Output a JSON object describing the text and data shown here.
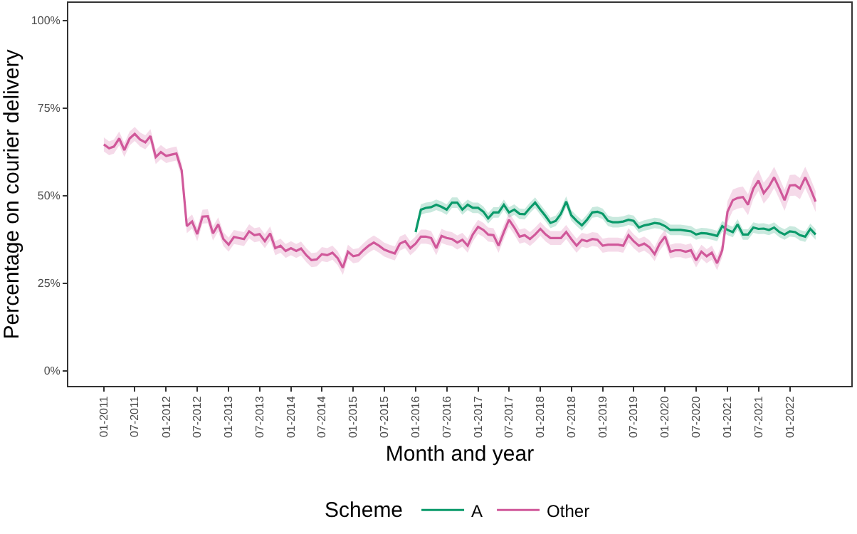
{
  "chart_data": {
    "type": "line",
    "xlabel": "Month and year",
    "ylabel": "Percentage on courier delivery",
    "legend_title": "Scheme",
    "legend": "bottom",
    "grid": false,
    "marker": "none",
    "line_style": "solid",
    "xlim": [
      "2010-06-07",
      "2022-12-27"
    ],
    "xticks": [
      {
        "value": "2011-01",
        "label": "01-2011"
      },
      {
        "value": "2011-07",
        "label": "07-2011"
      },
      {
        "value": "2012-01",
        "label": "01-2012"
      },
      {
        "value": "2012-07",
        "label": "07-2012"
      },
      {
        "value": "2013-01",
        "label": "01-2013"
      },
      {
        "value": "2013-07",
        "label": "07-2013"
      },
      {
        "value": "2014-01",
        "label": "01-2014"
      },
      {
        "value": "2014-07",
        "label": "07-2014"
      },
      {
        "value": "2015-01",
        "label": "01-2015"
      },
      {
        "value": "2015-07",
        "label": "07-2015"
      },
      {
        "value": "2016-01",
        "label": "01-2016"
      },
      {
        "value": "2016-07",
        "label": "07-2016"
      },
      {
        "value": "2017-01",
        "label": "01-2017"
      },
      {
        "value": "2017-07",
        "label": "07-2017"
      },
      {
        "value": "2018-01",
        "label": "01-2018"
      },
      {
        "value": "2018-07",
        "label": "07-2018"
      },
      {
        "value": "2019-01",
        "label": "01-2019"
      },
      {
        "value": "2019-07",
        "label": "07-2019"
      },
      {
        "value": "2020-01",
        "label": "01-2020"
      },
      {
        "value": "2020-07",
        "label": "07-2020"
      },
      {
        "value": "2021-01",
        "label": "01-2021"
      },
      {
        "value": "2021-07",
        "label": "07-2021"
      },
      {
        "value": "2022-01",
        "label": "01-2022"
      }
    ],
    "ylim": [
      -4.3,
      105
    ],
    "yticks": [
      {
        "value": 0,
        "label": "0%"
      },
      {
        "value": 25,
        "label": "25%"
      },
      {
        "value": 50,
        "label": "50%"
      },
      {
        "value": 75,
        "label": "75%"
      },
      {
        "value": 100,
        "label": "100%"
      }
    ],
    "series": [
      {
        "name": "A",
        "color": "#0a9a6a",
        "x": [
          "2016-01",
          "2016-02",
          "2016-03",
          "2016-04",
          "2016-05",
          "2016-06",
          "2016-07",
          "2016-08",
          "2016-09",
          "2016-10",
          "2016-11",
          "2016-12",
          "2017-01",
          "2017-02",
          "2017-03",
          "2017-04",
          "2017-05",
          "2017-06",
          "2017-07",
          "2017-08",
          "2017-09",
          "2017-10",
          "2017-11",
          "2017-12",
          "2018-01",
          "2018-02",
          "2018-03",
          "2018-04",
          "2018-05",
          "2018-06",
          "2018-07",
          "2018-08",
          "2018-09",
          "2018-10",
          "2018-11",
          "2018-12",
          "2019-01",
          "2019-02",
          "2019-03",
          "2019-04",
          "2019-05",
          "2019-06",
          "2019-07",
          "2019-08",
          "2019-09",
          "2019-10",
          "2019-11",
          "2019-12",
          "2020-01",
          "2020-02",
          "2020-03",
          "2020-04",
          "2020-05",
          "2020-06",
          "2020-07",
          "2020-08",
          "2020-09",
          "2020-10",
          "2020-11",
          "2020-12",
          "2021-01",
          "2021-02",
          "2021-03",
          "2021-04",
          "2021-05",
          "2021-06",
          "2021-07",
          "2021-08",
          "2021-09",
          "2021-10",
          "2021-11",
          "2021-12",
          "2022-01",
          "2022-02",
          "2022-03",
          "2022-04",
          "2022-05",
          "2022-06"
        ],
        "values": [
          39.6,
          46,
          46.5,
          46.7,
          47.4,
          46.8,
          46,
          48,
          48,
          46,
          47.4,
          46.5,
          46.5,
          45.4,
          43.5,
          45.2,
          45.2,
          47.4,
          45.2,
          46,
          44.8,
          44.7,
          46.5,
          48,
          46,
          44.1,
          42.2,
          42.8,
          44.8,
          48.3,
          44.4,
          42.8,
          41.5,
          43.1,
          45.2,
          45.4,
          44.8,
          42.8,
          42.4,
          42.4,
          42.6,
          43.1,
          42.8,
          40.9,
          41.5,
          41.8,
          42.2,
          42,
          41.3,
          40.2,
          40.2,
          40.2,
          40,
          39.8,
          38.9,
          39.3,
          39.2,
          38.9,
          38.5,
          41.3,
          40.2,
          39.6,
          41.8,
          38.9,
          38.9,
          40.9,
          40.5,
          40.6,
          40.2,
          40.9,
          39.6,
          38.9,
          39.8,
          39.6,
          38.7,
          38.3,
          40.5,
          38.9
        ],
        "lower": [
          38.1,
          44.5,
          45,
          45.2,
          45.9,
          45.3,
          44.5,
          46.5,
          46.5,
          44.5,
          45.9,
          45,
          45,
          43.9,
          42,
          43.7,
          43.7,
          45.9,
          43.7,
          44.5,
          43.3,
          43.2,
          45,
          46.5,
          44.5,
          42.6,
          40.7,
          41.3,
          43.3,
          46.8,
          42.9,
          41.3,
          40,
          41.6,
          43.7,
          43.9,
          43.3,
          41.3,
          40.9,
          40.9,
          41.1,
          41.6,
          41.3,
          39.4,
          40,
          40.3,
          40.7,
          40.5,
          39.8,
          38.7,
          38.7,
          38.7,
          38.5,
          38.3,
          37.4,
          37.8,
          37.7,
          37.4,
          37,
          39.8,
          38.7,
          38.1,
          40.3,
          37.4,
          37.4,
          39.4,
          39,
          39.1,
          38.7,
          39.4,
          38.1,
          37.4,
          38.3,
          38.1,
          37.2,
          36.8,
          39,
          37.4
        ],
        "upper": [
          41.1,
          47.5,
          48,
          48.2,
          48.9,
          48.3,
          47.5,
          49.5,
          49.5,
          47.5,
          48.9,
          48,
          48,
          46.9,
          45,
          46.7,
          46.7,
          48.9,
          46.7,
          47.5,
          46.3,
          46.2,
          48,
          49.5,
          47.5,
          45.6,
          43.7,
          44.3,
          46.3,
          49.8,
          45.9,
          44.3,
          43,
          44.6,
          46.7,
          46.9,
          46.3,
          44.3,
          43.9,
          43.9,
          44.1,
          44.6,
          44.3,
          42.4,
          43,
          43.3,
          43.7,
          43.5,
          42.8,
          41.7,
          41.7,
          41.7,
          41.5,
          41.3,
          40.4,
          40.8,
          40.7,
          40.4,
          40,
          42.8,
          41.7,
          41.1,
          43.3,
          40.4,
          40.4,
          42.4,
          42,
          42.1,
          41.7,
          42.4,
          41.1,
          40.4,
          41.3,
          41.1,
          40.2,
          39.8,
          42,
          40.4
        ]
      },
      {
        "name": "Other",
        "color": "#d0589a",
        "x": [
          "2011-01",
          "2011-02",
          "2011-03",
          "2011-04",
          "2011-05",
          "2011-06",
          "2011-07",
          "2011-08",
          "2011-09",
          "2011-10",
          "2011-11",
          "2011-12",
          "2012-01",
          "2012-02",
          "2012-03",
          "2012-04",
          "2012-05",
          "2012-06",
          "2012-07",
          "2012-08",
          "2012-09",
          "2012-10",
          "2012-11",
          "2012-12",
          "2013-01",
          "2013-02",
          "2013-03",
          "2013-04",
          "2013-05",
          "2013-06",
          "2013-07",
          "2013-08",
          "2013-09",
          "2013-10",
          "2013-11",
          "2013-12",
          "2014-01",
          "2014-02",
          "2014-03",
          "2014-04",
          "2014-05",
          "2014-06",
          "2014-07",
          "2014-08",
          "2014-09",
          "2014-10",
          "2014-11",
          "2014-12",
          "2015-01",
          "2015-02",
          "2015-03",
          "2015-04",
          "2015-05",
          "2015-06",
          "2015-07",
          "2015-08",
          "2015-09",
          "2015-10",
          "2015-11",
          "2015-12",
          "2016-01",
          "2016-02",
          "2016-03",
          "2016-04",
          "2016-05",
          "2016-06",
          "2016-07",
          "2016-08",
          "2016-09",
          "2016-10",
          "2016-11",
          "2016-12",
          "2017-01",
          "2017-02",
          "2017-03",
          "2017-04",
          "2017-05",
          "2017-06",
          "2017-07",
          "2017-08",
          "2017-09",
          "2017-10",
          "2017-11",
          "2017-12",
          "2018-01",
          "2018-02",
          "2018-03",
          "2018-04",
          "2018-05",
          "2018-06",
          "2018-07",
          "2018-08",
          "2018-09",
          "2018-10",
          "2018-11",
          "2018-12",
          "2019-01",
          "2019-02",
          "2019-03",
          "2019-04",
          "2019-05",
          "2019-06",
          "2019-07",
          "2019-08",
          "2019-09",
          "2019-10",
          "2019-11",
          "2019-12",
          "2020-01",
          "2020-02",
          "2020-03",
          "2020-04",
          "2020-05",
          "2020-06",
          "2020-07",
          "2020-08",
          "2020-09",
          "2020-10",
          "2020-11",
          "2020-12",
          "2021-01",
          "2021-02",
          "2021-03",
          "2021-04",
          "2021-05",
          "2021-06",
          "2021-07",
          "2021-08",
          "2021-09",
          "2021-10",
          "2021-11",
          "2021-12",
          "2022-01",
          "2022-02",
          "2022-03",
          "2022-04",
          "2022-05",
          "2022-06"
        ],
        "values": [
          64.6,
          63.5,
          64,
          66.3,
          63,
          66.3,
          67.6,
          66,
          65.2,
          67,
          61,
          62.4,
          61.3,
          61.7,
          62,
          57.2,
          41.3,
          42.6,
          39,
          44,
          44.1,
          39.2,
          41.8,
          37.6,
          36,
          38.2,
          37.9,
          37.6,
          39.8,
          38.7,
          39,
          37,
          39.2,
          35,
          35.7,
          34.2,
          35,
          34.2,
          34.9,
          33,
          31.6,
          31.8,
          33.3,
          33,
          33.7,
          32.2,
          29.4,
          34,
          32.7,
          33,
          34.4,
          35.7,
          36.6,
          35.7,
          34.6,
          34,
          33.5,
          36.3,
          37,
          35,
          36.3,
          38.3,
          38.3,
          37.9,
          35,
          38.5,
          37.9,
          37.6,
          36.6,
          37.4,
          35.7,
          38.9,
          41.1,
          40.2,
          38.9,
          38.7,
          35.7,
          39.6,
          43.1,
          40.9,
          38.3,
          38.7,
          37.6,
          38.9,
          40.5,
          38.9,
          37.9,
          37.9,
          37.9,
          39.6,
          37.6,
          35.7,
          37.4,
          37,
          37.6,
          37.4,
          35.7,
          36,
          36,
          36,
          35.7,
          38.7,
          37,
          35.7,
          36.3,
          35.3,
          33.3,
          36.3,
          38.3,
          34,
          34.4,
          34.4,
          34,
          34.4,
          31.5,
          34,
          32.7,
          33.7,
          30.7,
          34.4,
          45.4,
          48.7,
          49.3,
          49.6,
          47.4,
          52,
          54.3,
          50.7,
          52.6,
          55.2,
          52,
          48.7,
          52.9,
          53,
          52,
          55.2,
          52,
          48.3
        ],
        "lower": [
          62.6,
          61.5,
          62,
          64.3,
          61,
          64.3,
          65.6,
          64,
          63.2,
          65,
          59,
          60.4,
          59.3,
          59.7,
          60,
          55.2,
          39.3,
          40.6,
          37,
          42,
          42.1,
          37.2,
          39.8,
          35.6,
          34,
          36.2,
          35.9,
          35.6,
          37.8,
          36.7,
          37,
          35,
          37.2,
          33,
          33.7,
          32.2,
          33,
          32.2,
          32.9,
          31,
          29.6,
          29.8,
          31.3,
          31,
          31.7,
          30.2,
          27.4,
          32,
          30.7,
          31,
          32.4,
          33.7,
          34.6,
          33.7,
          32.6,
          32,
          31.5,
          34.3,
          35,
          33,
          34.3,
          36.3,
          36.3,
          35.9,
          33,
          36.5,
          35.9,
          35.6,
          34.6,
          35.4,
          33.7,
          36.9,
          39.1,
          38.2,
          36.9,
          36.7,
          33.7,
          37.6,
          41.1,
          38.9,
          36.3,
          36.7,
          35.6,
          36.9,
          38.5,
          36.9,
          35.9,
          35.9,
          35.9,
          37.6,
          35.6,
          33.7,
          35.4,
          35,
          35.6,
          35.4,
          33.7,
          34,
          34,
          34,
          33.7,
          36.7,
          35,
          33.7,
          34.3,
          33.3,
          31.3,
          34.3,
          36.3,
          32,
          32.4,
          32.4,
          32,
          32.4,
          29.5,
          32,
          30.7,
          31.7,
          28.7,
          32.4,
          42.4,
          45.7,
          46.3,
          46.6,
          44.4,
          49,
          51.3,
          47.7,
          49.6,
          52.2,
          49,
          45.7,
          49.9,
          50,
          49,
          52.2,
          49,
          45.3
        ],
        "upper": [
          66.6,
          65.5,
          66,
          68.3,
          65,
          68.3,
          69.6,
          68,
          67.2,
          69,
          63,
          64.4,
          63.3,
          63.7,
          64,
          59.2,
          43.3,
          44.6,
          41,
          46,
          46.1,
          41.2,
          43.8,
          39.6,
          38,
          40.2,
          39.9,
          39.6,
          41.8,
          40.7,
          41,
          39,
          41.2,
          37,
          37.7,
          36.2,
          37,
          36.2,
          36.9,
          35,
          33.6,
          33.8,
          35.3,
          35,
          35.7,
          34.2,
          31.4,
          36,
          34.7,
          35,
          36.4,
          37.7,
          38.6,
          37.7,
          36.6,
          36,
          35.5,
          38.3,
          39,
          37,
          38.3,
          40.3,
          40.3,
          39.9,
          37,
          40.5,
          39.9,
          39.6,
          38.6,
          39.4,
          37.7,
          40.9,
          43.1,
          42.2,
          40.9,
          40.7,
          37.7,
          41.6,
          45.1,
          42.9,
          40.3,
          40.7,
          39.6,
          40.9,
          42.5,
          40.9,
          39.9,
          39.9,
          39.9,
          41.6,
          39.6,
          37.7,
          39.4,
          39,
          39.6,
          39.4,
          37.7,
          38,
          38,
          38,
          37.7,
          40.7,
          39,
          37.7,
          38.3,
          37.3,
          35.3,
          38.3,
          40.3,
          36,
          36.4,
          36.4,
          36,
          36.4,
          33.5,
          36,
          34.7,
          35.7,
          32.7,
          36.4,
          48.4,
          51.7,
          52.3,
          52.6,
          50.4,
          55,
          57.3,
          53.7,
          55.6,
          58.2,
          55,
          51.7,
          55.9,
          56,
          55,
          58.2,
          55,
          51.3
        ]
      }
    ]
  }
}
